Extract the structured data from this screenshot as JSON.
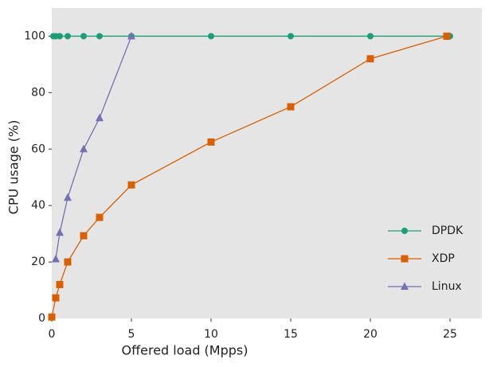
{
  "chart_data": {
    "type": "line",
    "xlabel": "Offered load (Mpps)",
    "ylabel": "CPU usage (%)",
    "xlim": [
      0,
      27
    ],
    "ylim": [
      0,
      110
    ],
    "xticks": [
      0,
      5,
      10,
      15,
      20,
      25
    ],
    "yticks": [
      0,
      20,
      40,
      60,
      80,
      100
    ],
    "legend": "lower right",
    "background": "#e5e5e5",
    "series": [
      {
        "name": "DPDK",
        "color": "#1b9e77",
        "marker": "circle",
        "x": [
          0.1,
          0.25,
          0.5,
          1,
          2,
          3,
          5,
          10,
          15,
          20,
          25
        ],
        "values": [
          100,
          100,
          100,
          100,
          100,
          100,
          100,
          100,
          100,
          100,
          100
        ]
      },
      {
        "name": "XDP",
        "color": "#d95f02",
        "marker": "square",
        "x": [
          0,
          0.25,
          0.5,
          1,
          2,
          3,
          5,
          10,
          15,
          20,
          24.8
        ],
        "values": [
          0.5,
          7.3,
          12,
          20,
          29.3,
          35.8,
          47.3,
          62.5,
          75,
          92,
          100
        ]
      },
      {
        "name": "Linux",
        "color": "#7570b3",
        "marker": "triangle",
        "x": [
          0.25,
          0.5,
          1,
          2,
          3,
          5
        ],
        "values": [
          21,
          30.4,
          42.8,
          60,
          71,
          100
        ]
      }
    ]
  }
}
